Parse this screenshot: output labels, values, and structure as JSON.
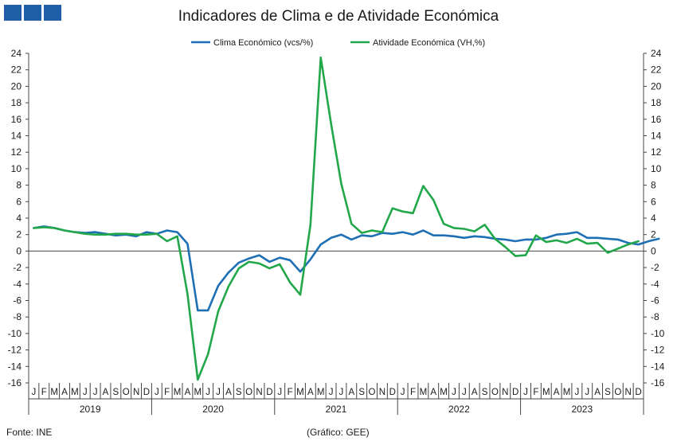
{
  "logo": {
    "icon": "ine-logo-icon",
    "color": "#1f5fa8"
  },
  "footer": {
    "source": "Fonte: INE",
    "credit": "(Gráfico: GEE)"
  },
  "chart_data": {
    "type": "line",
    "title": "Indicadores de Clima e de Atividade Económica",
    "ylim": [
      -16,
      24
    ],
    "y_ticks": [
      -16,
      -14,
      -12,
      -10,
      -8,
      -6,
      -4,
      -2,
      0,
      2,
      4,
      6,
      8,
      10,
      12,
      14,
      16,
      18,
      20,
      22,
      24
    ],
    "y_ticks_right": [
      -16,
      -14,
      -12,
      -10,
      -8,
      -6,
      -4,
      -2,
      0,
      2,
      4,
      6,
      8,
      10,
      12,
      14,
      16,
      18,
      20,
      22,
      24
    ],
    "legend_position": "top-center",
    "month_labels": [
      "J",
      "F",
      "M",
      "A",
      "M",
      "J",
      "J",
      "A",
      "S",
      "O",
      "N",
      "D"
    ],
    "years": [
      "2019",
      "2020",
      "2021",
      "2022",
      "2023"
    ],
    "series": [
      {
        "name": "Clima Económico (vcs/%)",
        "color": "#1f6fb5",
        "values": [
          2.8,
          3.0,
          2.8,
          2.5,
          2.3,
          2.2,
          2.3,
          2.1,
          1.9,
          2.0,
          1.8,
          2.3,
          2.1,
          2.5,
          2.3,
          0.9,
          -7.2,
          -7.2,
          -4.2,
          -2.6,
          -1.4,
          -0.9,
          -0.5,
          -1.3,
          -0.8,
          -1.1,
          -2.5,
          -1.0,
          0.8,
          1.6,
          2.0,
          1.4,
          1.9,
          1.8,
          2.2,
          2.1,
          2.3,
          2.0,
          2.5,
          1.9,
          1.9,
          1.8,
          1.6,
          1.8,
          1.7,
          1.5,
          1.4,
          1.2,
          1.4,
          1.4,
          1.6,
          2.0,
          2.1,
          2.3,
          1.6,
          1.6,
          1.5,
          1.4,
          1.0,
          0.8,
          1.2,
          1.5
        ]
      },
      {
        "name": "Atividade Económica (VH,%)",
        "color": "#22a74a",
        "values": [
          2.8,
          2.9,
          2.8,
          2.5,
          2.3,
          2.1,
          2.0,
          2.0,
          2.1,
          2.1,
          2.0,
          2.0,
          2.1,
          1.2,
          1.8,
          -5.2,
          -15.6,
          -12.5,
          -7.3,
          -4.3,
          -2.1,
          -1.3,
          -1.5,
          -2.1,
          -1.6,
          -3.8,
          -5.3,
          3.2,
          23.5,
          15.5,
          8.2,
          3.3,
          2.2,
          2.5,
          2.3,
          5.2,
          4.8,
          4.6,
          7.9,
          6.2,
          3.3,
          2.8,
          2.7,
          2.4,
          3.2,
          1.5,
          0.5,
          -0.6,
          -0.5,
          1.9,
          1.1,
          1.3,
          1.0,
          1.5,
          0.9,
          1.0,
          -0.2,
          0.3,
          0.8,
          1.2
        ]
      }
    ]
  }
}
